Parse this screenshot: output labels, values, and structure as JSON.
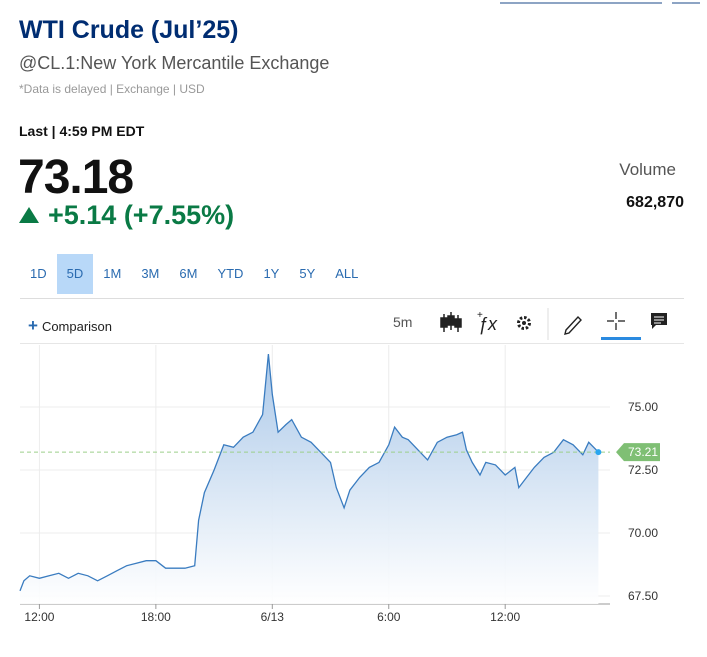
{
  "header": {
    "title": "WTI Crude (Jul’25)",
    "symbol": "@CL.1:New York Mercantile Exchange",
    "note": "*Data is delayed | Exchange | USD"
  },
  "quote": {
    "last_label": "Last | 4:59 PM EDT",
    "price": "73.18",
    "change": "+5.14 (+7.55%)",
    "volume_label": "Volume",
    "volume": "682,870"
  },
  "ranges": [
    "1D",
    "5D",
    "1M",
    "3M",
    "6M",
    "YTD",
    "1Y",
    "5Y",
    "ALL"
  ],
  "active_range": 1,
  "toolbar": {
    "comparison": "Comparison",
    "interval": "5m"
  },
  "chart_data": {
    "type": "line",
    "color": "#3a7cc0",
    "x": [
      11.0,
      11.2,
      11.5,
      12.0,
      12.5,
      13.0,
      13.5,
      14.0,
      14.5,
      15.0,
      15.5,
      16.0,
      16.5,
      17.0,
      17.5,
      18.0,
      18.5,
      19.0,
      19.5,
      20.0,
      20.2,
      20.5,
      21.0,
      21.5,
      22.0,
      22.5,
      23.0,
      23.5,
      23.8,
      24.0,
      24.3,
      24.7,
      25.0,
      25.5,
      26.0,
      26.5,
      27.0,
      27.3,
      27.7,
      28.0,
      28.5,
      29.0,
      29.5,
      30.0,
      30.3,
      30.7,
      31.0,
      31.5,
      32.0,
      32.5,
      33.0,
      33.5,
      33.8,
      34.0,
      34.3,
      34.7,
      35.0,
      35.5,
      36.0,
      36.5,
      36.7,
      37.0,
      37.5,
      38.0,
      38.5,
      39.0,
      39.5,
      40.0,
      40.3,
      40.8
    ],
    "values": [
      67.7,
      68.1,
      68.3,
      68.2,
      68.3,
      68.4,
      68.2,
      68.4,
      68.3,
      68.1,
      68.3,
      68.5,
      68.7,
      68.8,
      68.9,
      68.9,
      68.6,
      68.6,
      68.6,
      68.7,
      70.5,
      71.6,
      72.5,
      73.5,
      73.4,
      73.8,
      74.0,
      74.7,
      77.1,
      75.5,
      74.0,
      74.3,
      74.5,
      73.8,
      73.6,
      73.2,
      72.8,
      71.8,
      71.0,
      71.7,
      72.2,
      72.6,
      72.8,
      73.5,
      74.2,
      73.8,
      73.7,
      73.3,
      72.9,
      73.6,
      73.8,
      73.9,
      74.0,
      73.3,
      72.8,
      72.3,
      72.8,
      72.7,
      72.3,
      72.6,
      71.8,
      72.1,
      72.6,
      73.0,
      73.2,
      73.7,
      73.5,
      73.1,
      73.6,
      73.21
    ],
    "xlim": [
      11.0,
      41.4
    ],
    "ylim": [
      67.18,
      77.46
    ],
    "xticks": [
      {
        "value": 12,
        "label": "12:00"
      },
      {
        "value": 18,
        "label": "18:00"
      },
      {
        "value": 24,
        "label": "6/13"
      },
      {
        "value": 30,
        "label": "6:00"
      },
      {
        "value": 36,
        "label": "12:00"
      }
    ],
    "yticks": [
      {
        "value": 67.5,
        "label": "67.50"
      },
      {
        "value": 70,
        "label": "70.00"
      },
      {
        "value": 72.5,
        "label": "72.50"
      },
      {
        "value": 75,
        "label": "75.00"
      }
    ],
    "grid": true
  }
}
